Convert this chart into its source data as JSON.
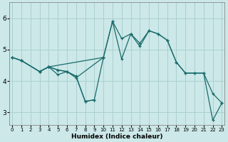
{
  "xlabel": "Humidex (Indice chaleur)",
  "background_color": "#cce8e8",
  "grid_color": "#aad0d0",
  "line_color": "#1a6b6b",
  "x_ticks": [
    0,
    1,
    2,
    3,
    4,
    5,
    6,
    7,
    8,
    9,
    10,
    11,
    12,
    13,
    14,
    15,
    16,
    17,
    18,
    19,
    20,
    21,
    22,
    23
  ],
  "y_ticks": [
    3,
    4,
    5,
    6
  ],
  "ylim": [
    2.6,
    6.5
  ],
  "xlim": [
    -0.3,
    23.3
  ],
  "series1_x": [
    0,
    1,
    3,
    4,
    5,
    6,
    7,
    10
  ],
  "series1_y": [
    4.75,
    4.65,
    4.3,
    4.45,
    4.35,
    4.3,
    4.1,
    4.75
  ],
  "series2_x": [
    3,
    4,
    5,
    6,
    7,
    8,
    9
  ],
  "series2_y": [
    4.3,
    4.45,
    4.2,
    4.3,
    4.15,
    3.35,
    3.4
  ],
  "series3_x": [
    0,
    1,
    3,
    4,
    10,
    11,
    12,
    13,
    14,
    15,
    16,
    17,
    18,
    19,
    20,
    21,
    22,
    23
  ],
  "series3_y": [
    4.75,
    4.65,
    4.3,
    4.45,
    4.75,
    5.9,
    5.35,
    5.5,
    5.2,
    5.6,
    5.5,
    5.3,
    4.6,
    4.25,
    4.25,
    4.25,
    3.6,
    3.3
  ],
  "series4_x": [
    0,
    1,
    3,
    4,
    5,
    6,
    7,
    8,
    9,
    10,
    11,
    12,
    13,
    14,
    15,
    16,
    17,
    18,
    19,
    20,
    21,
    22,
    23
  ],
  "series4_y": [
    4.75,
    4.65,
    4.3,
    4.45,
    4.35,
    4.3,
    4.15,
    3.35,
    3.4,
    4.75,
    5.9,
    4.7,
    5.5,
    5.1,
    5.6,
    5.5,
    5.3,
    4.6,
    4.25,
    4.25,
    4.25,
    2.75,
    3.3
  ]
}
